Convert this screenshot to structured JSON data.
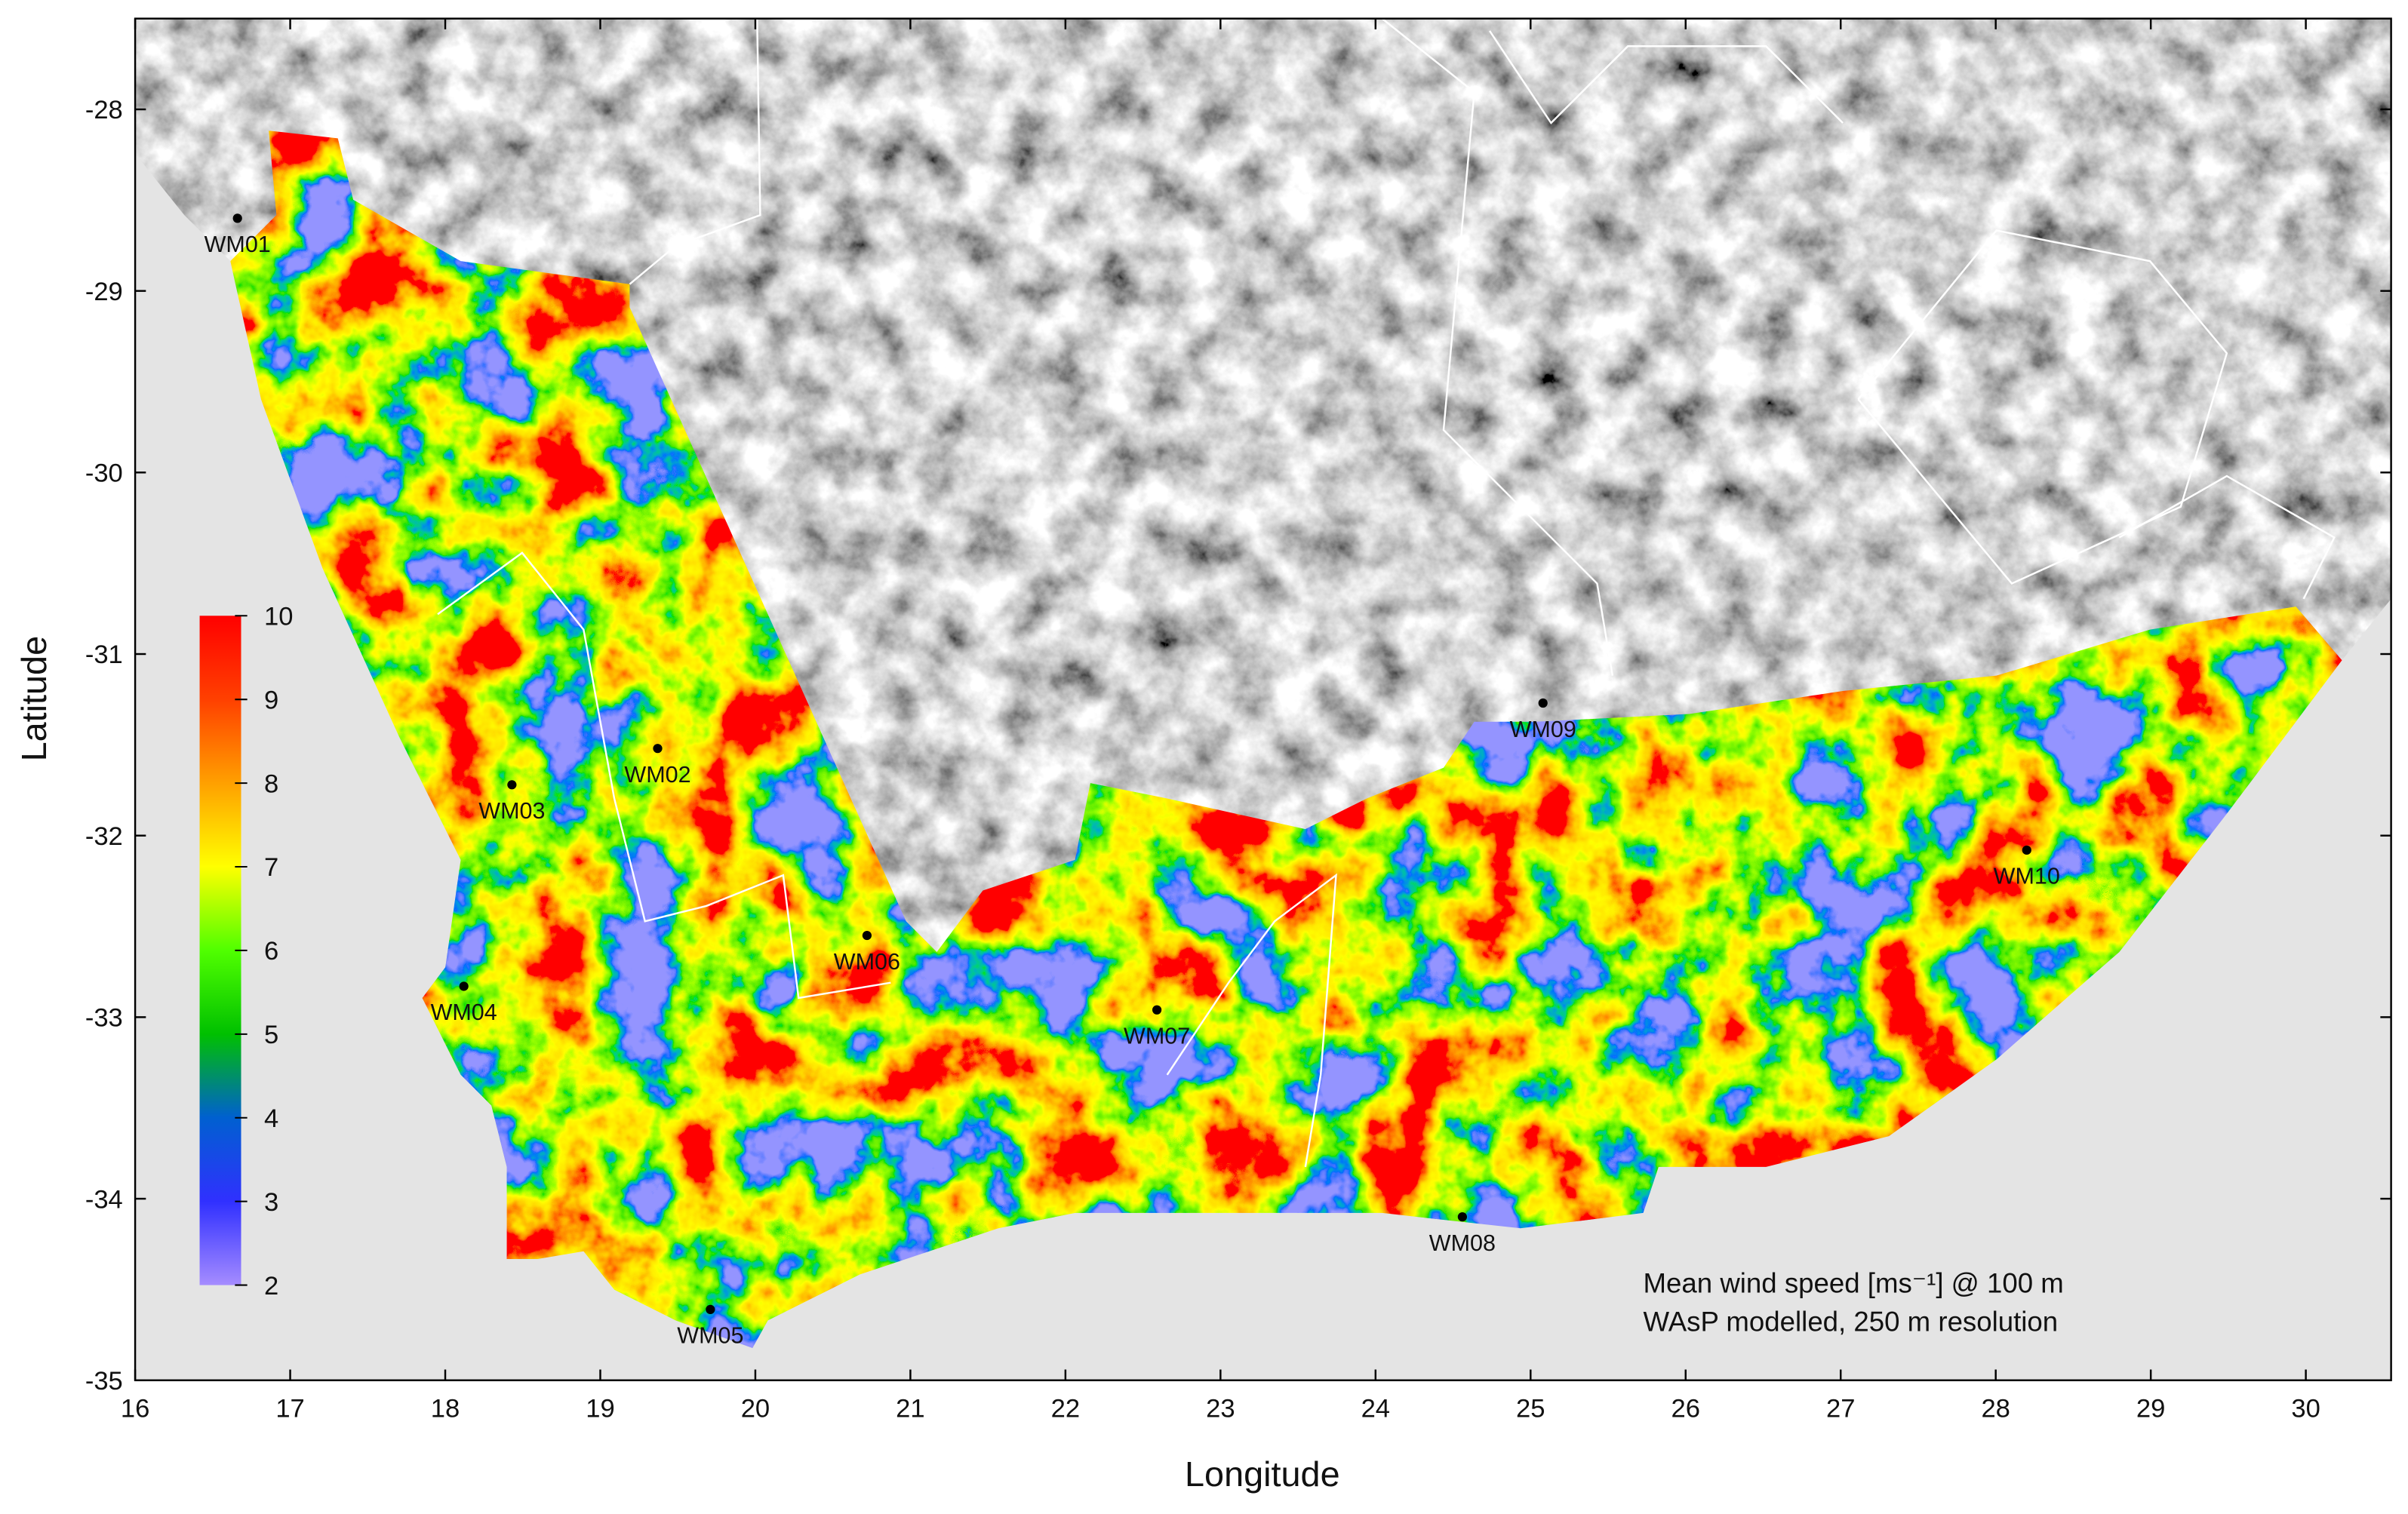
{
  "chart_data": {
    "type": "map",
    "x_label": "Longitude",
    "y_label": "Latitude",
    "xlim": [
      16,
      30.55
    ],
    "ylim": [
      -35,
      -27.5
    ],
    "xticks": [
      16,
      17,
      18,
      19,
      20,
      21,
      22,
      23,
      24,
      25,
      26,
      27,
      28,
      29,
      30
    ],
    "yticks": [
      -35,
      -34,
      -33,
      -32,
      -31,
      -30,
      -29,
      -28
    ],
    "points": {
      "names": [
        "WM01",
        "WM02",
        "WM03",
        "WM04",
        "WM05",
        "WM06",
        "WM07",
        "WM08",
        "WM09",
        "WM10"
      ],
      "x": [
        16.66,
        19.37,
        18.43,
        18.12,
        19.71,
        20.72,
        22.59,
        24.56,
        25.08,
        28.2
      ],
      "y": [
        -28.6,
        -31.52,
        -31.72,
        -32.83,
        -34.61,
        -32.55,
        -32.96,
        -34.1,
        -31.27,
        -32.08
      ],
      "color": "#000000"
    },
    "colorbar": {
      "lim": [
        2,
        10
      ],
      "ticks": [
        2,
        3,
        4,
        5,
        6,
        7,
        8,
        9,
        10
      ],
      "colors": [
        "#a58cff",
        "#3030ff",
        "#0060d0",
        "#00c000",
        "#50ff00",
        "#ffff00",
        "#ffa000",
        "#ff4000",
        "#ff0000"
      ]
    },
    "annotations": [
      "Mean wind speed [ms⁻¹] @ 100 m",
      "WAsP modelled, 250 m resolution"
    ]
  }
}
